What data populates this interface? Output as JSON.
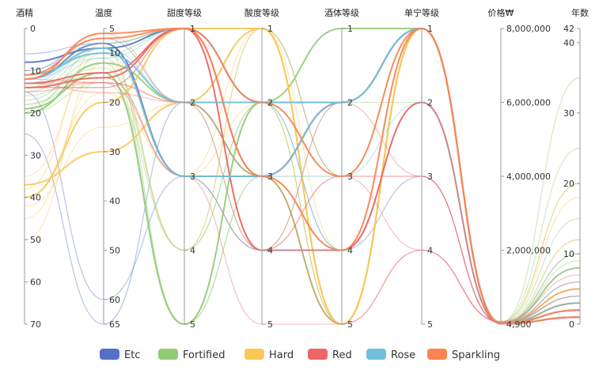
{
  "chart_data": {
    "type": "parallel",
    "axes": [
      {
        "name": "酒精",
        "min": 0,
        "max": 70,
        "ticks": [
          0,
          10,
          20,
          30,
          40,
          50,
          60,
          70
        ],
        "tick_labels": [
          "0",
          "10",
          "20",
          "30",
          "40",
          "50",
          "60",
          "70"
        ],
        "ticks_side": "right"
      },
      {
        "name": "温度",
        "min": 5,
        "max": 65,
        "ticks": [
          5,
          10,
          20,
          30,
          40,
          50,
          60,
          65
        ],
        "tick_labels": [
          "5",
          "10",
          "20",
          "30",
          "40",
          "50",
          "60",
          "65"
        ],
        "ticks_side": "right"
      },
      {
        "name": "甜度等级",
        "min": 1,
        "max": 5,
        "ticks": [
          1,
          2,
          3,
          4,
          5
        ],
        "tick_labels": [
          "1",
          "2",
          "3",
          "4",
          "5"
        ],
        "ticks_side": "right"
      },
      {
        "name": "酸度等级",
        "min": 1,
        "max": 5,
        "ticks": [
          1,
          2,
          3,
          4,
          5
        ],
        "tick_labels": [
          "1",
          "2",
          "3",
          "4",
          "5"
        ],
        "ticks_side": "right"
      },
      {
        "name": "酒体等级",
        "min": 1,
        "max": 5,
        "ticks": [
          1,
          2,
          3,
          4,
          5
        ],
        "tick_labels": [
          "1",
          "2",
          "3",
          "4",
          "5"
        ],
        "ticks_side": "right"
      },
      {
        "name": "单宁等级",
        "min": 1,
        "max": 5,
        "ticks": [
          1,
          2,
          3,
          4,
          5
        ],
        "tick_labels": [
          "1",
          "2",
          "3",
          "4",
          "5"
        ],
        "ticks_side": "right"
      },
      {
        "name": "价格₩",
        "min": 0,
        "max": 8000000,
        "ticks": [
          4900,
          2000000,
          4000000,
          6000000,
          8000000
        ],
        "tick_labels": [
          "4,900",
          "2,000,000",
          "4,000,000",
          "6,000,000",
          "8,000,000"
        ],
        "ticks_side": "right",
        "invert": true
      },
      {
        "name": "年数",
        "min": 0,
        "max": 42,
        "ticks": [
          0,
          10,
          20,
          30,
          40,
          42
        ],
        "tick_labels": [
          "0",
          "10",
          "20",
          "30",
          "40",
          "42"
        ],
        "ticks_side": "left",
        "invert": true
      }
    ],
    "legend": {
      "position": "bottom",
      "items": [
        {
          "name": "Etc",
          "color": "#5470c6"
        },
        {
          "name": "Fortified",
          "color": "#91cc75"
        },
        {
          "name": "Hard",
          "color": "#fac858"
        },
        {
          "name": "Red",
          "color": "#ee6666"
        },
        {
          "name": "Rose",
          "color": "#73c0de"
        },
        {
          "name": "Sparkling",
          "color": "#fc8452"
        }
      ]
    },
    "series": [
      {
        "category": "Etc",
        "lines": [
          [
            8,
            9,
            1,
            2,
            2,
            1,
            10000,
            1
          ],
          [
            12,
            8,
            3,
            3,
            2,
            1,
            10000,
            2
          ],
          [
            6,
            8,
            1,
            3,
            4,
            2,
            40000,
            2
          ],
          [
            25,
            65,
            2,
            2,
            4,
            3,
            20000,
            3
          ],
          [
            15,
            60,
            3,
            4,
            4,
            2,
            30000,
            5
          ],
          [
            10,
            7,
            2,
            1,
            3,
            1,
            10000,
            1
          ]
        ]
      },
      {
        "category": "Fortified",
        "lines": [
          [
            20,
            12,
            2,
            3,
            5,
            1,
            15000,
            3
          ],
          [
            19,
            14,
            5,
            2,
            1,
            1,
            30000,
            8
          ],
          [
            18,
            12,
            5,
            3,
            5,
            1,
            12000,
            6
          ],
          [
            17,
            11,
            4,
            2,
            5,
            1,
            20000,
            12
          ],
          [
            15,
            10,
            1,
            3,
            3,
            1,
            35000,
            35
          ],
          [
            14,
            9,
            2,
            4,
            2,
            2,
            18000,
            10
          ],
          [
            13,
            15,
            3,
            3,
            4,
            1,
            25000,
            15
          ],
          [
            16,
            13,
            4,
            1,
            3,
            1,
            10000,
            5
          ],
          [
            19,
            9,
            5,
            2,
            5,
            1,
            50000,
            20
          ],
          [
            12,
            8,
            1,
            4,
            4,
            2,
            30000,
            9
          ],
          [
            18,
            14,
            5,
            3,
            5,
            1,
            15000,
            4
          ],
          [
            20,
            16,
            4,
            2,
            3,
            1,
            60000,
            25
          ]
        ]
      },
      {
        "category": "Hard",
        "lines": [
          [
            40,
            20,
            1,
            1,
            5,
            1,
            10000,
            2
          ],
          [
            37,
            30,
            2,
            1,
            5,
            1,
            20000,
            5
          ],
          [
            45,
            15,
            1,
            1,
            4,
            1,
            30000,
            10
          ],
          [
            35,
            10,
            3,
            2,
            5,
            1,
            40000,
            18
          ],
          [
            50,
            12,
            4,
            1,
            5,
            1,
            50000,
            20
          ],
          [
            38,
            8,
            1,
            3,
            5,
            1,
            15000,
            12
          ],
          [
            42,
            25,
            2,
            1,
            3,
            1,
            25000,
            8
          ],
          [
            40,
            18,
            3,
            1,
            5,
            1,
            12000,
            3
          ]
        ]
      },
      {
        "category": "Red",
        "lines": [
          [
            13,
            14,
            1,
            3,
            2,
            1,
            12000,
            1
          ],
          [
            14,
            15,
            1,
            4,
            4,
            2,
            20000,
            2
          ],
          [
            13,
            16,
            2,
            4,
            3,
            3,
            30000,
            3
          ],
          [
            14,
            17,
            1,
            3,
            5,
            4,
            60000,
            4
          ],
          [
            12,
            16,
            3,
            4,
            4,
            2,
            15000,
            2
          ],
          [
            13,
            18,
            2,
            2,
            3,
            3,
            40000,
            5
          ],
          [
            14,
            15,
            3,
            5,
            5,
            4,
            50000,
            6
          ],
          [
            13,
            14,
            1,
            4,
            3,
            4,
            80000,
            7
          ],
          [
            15,
            16,
            2,
            3,
            4,
            2,
            25000,
            3
          ],
          [
            14,
            17,
            1,
            4,
            2,
            3,
            35000,
            4
          ]
        ]
      },
      {
        "category": "Rose",
        "lines": [
          [
            11,
            10,
            2,
            2,
            2,
            1,
            15000,
            3
          ],
          [
            12,
            9,
            3,
            3,
            2,
            1,
            10000,
            2
          ],
          [
            10,
            8,
            1,
            2,
            4,
            1,
            20000,
            6
          ],
          [
            11,
            10,
            2,
            3,
            3,
            2,
            30000,
            8
          ],
          [
            12,
            11,
            1,
            2,
            2,
            1,
            25000,
            4
          ],
          [
            13,
            9,
            3,
            4,
            4,
            1,
            40000,
            10
          ]
        ]
      },
      {
        "category": "Sparkling",
        "lines": [
          [
            12,
            6,
            1,
            3,
            4,
            1,
            10000,
            1
          ],
          [
            11,
            7,
            1,
            2,
            3,
            1,
            20000,
            2
          ],
          [
            12,
            6,
            2,
            3,
            4,
            1,
            15000,
            3
          ]
        ]
      }
    ]
  }
}
